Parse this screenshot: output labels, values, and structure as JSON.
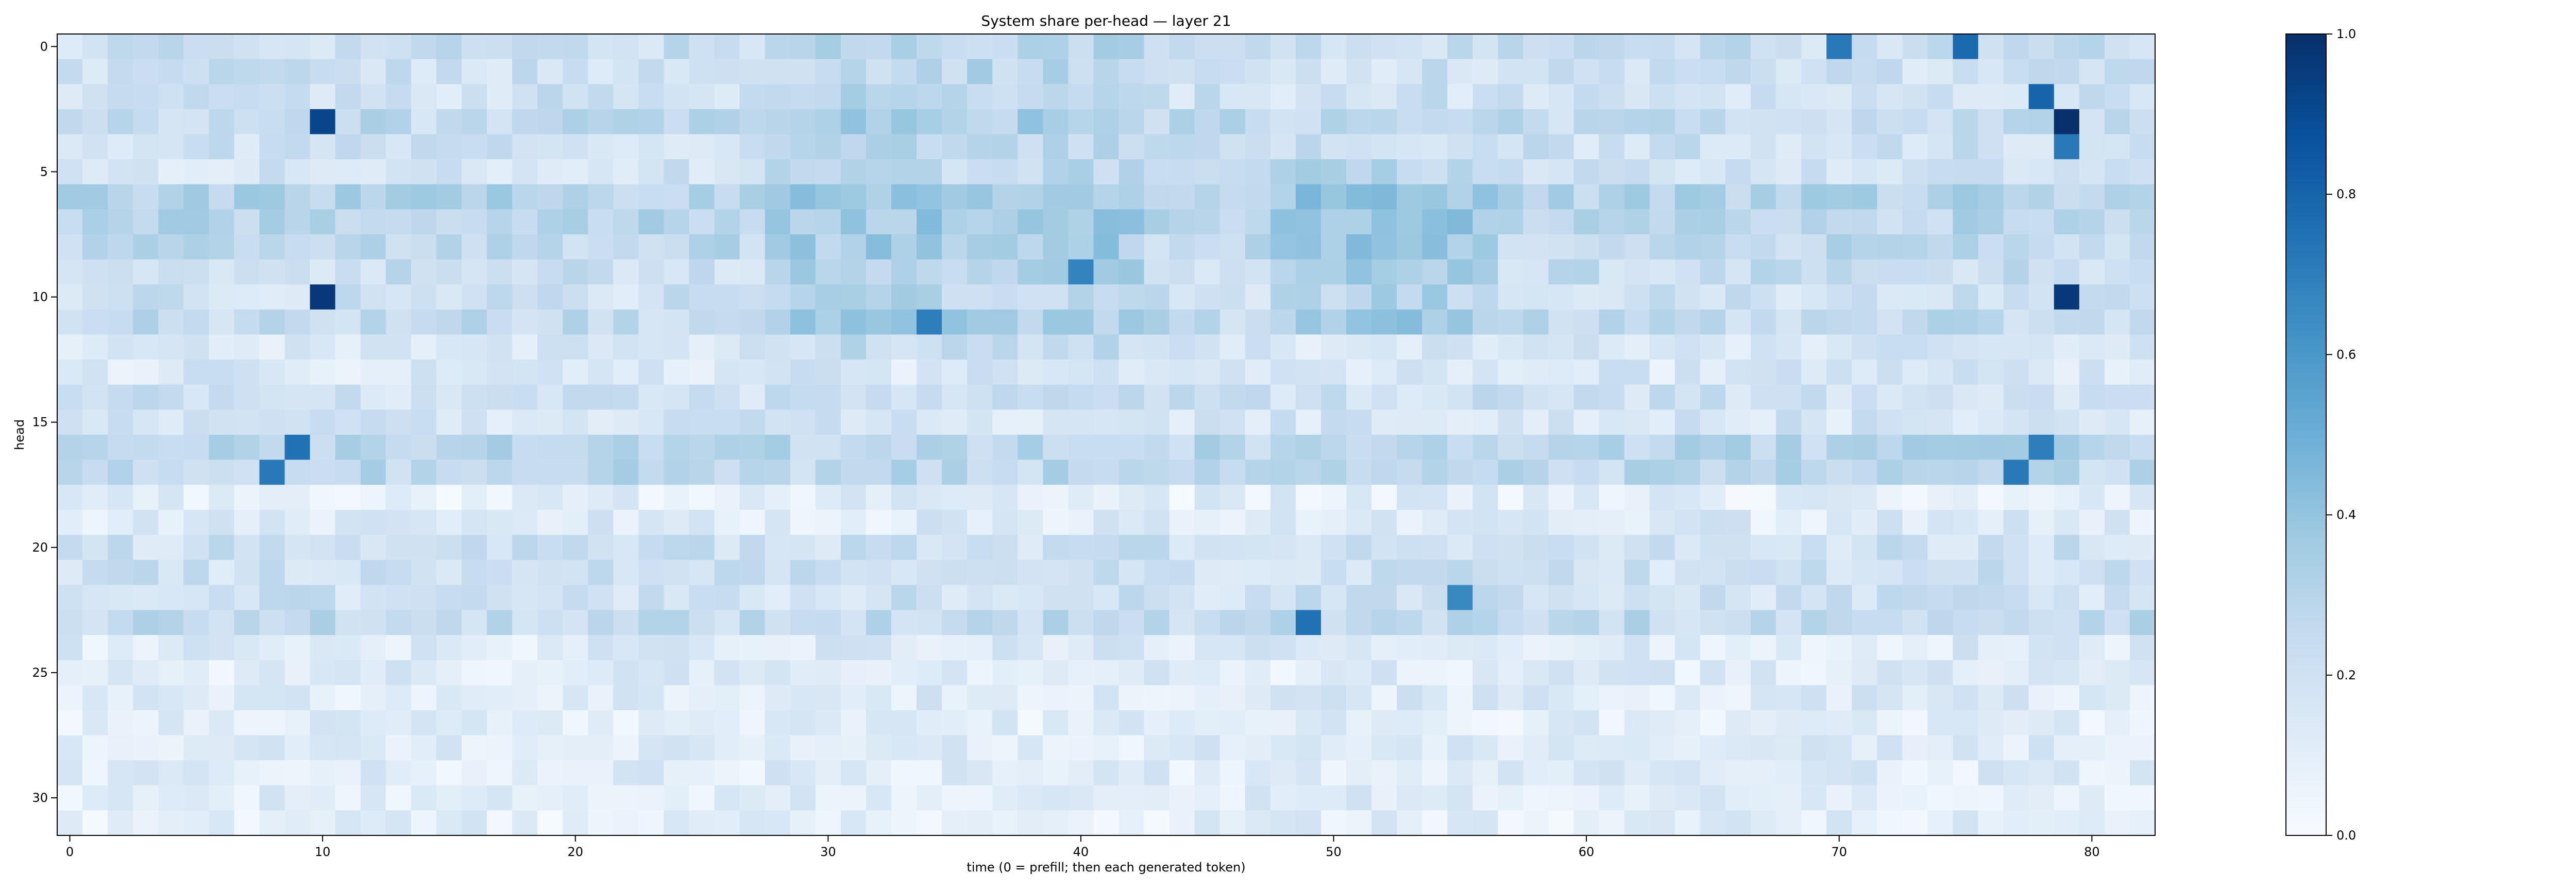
{
  "chart_data": {
    "type": "heatmap",
    "title": "System share per-head — layer 21",
    "xlabel": "time (0 = prefill; then each generated token)",
    "ylabel": "head",
    "n_cols": 83,
    "n_rows": 32,
    "x_range": [
      0,
      82
    ],
    "y_range": [
      0,
      31
    ],
    "x_ticks": [
      "0",
      "10",
      "20",
      "30",
      "40",
      "50",
      "60",
      "70",
      "80"
    ],
    "y_ticks": [
      "0",
      "5",
      "10",
      "15",
      "20",
      "25",
      "30"
    ],
    "colormap": "Blues",
    "colorbar": {
      "min": 0.0,
      "max": 1.0,
      "ticks": [
        "0.0",
        "0.2",
        "0.4",
        "0.6",
        "0.8",
        "1.0"
      ]
    },
    "grid": false,
    "legend": "none",
    "colors": {
      "low": "#f7fbff",
      "high": "#08306b"
    },
    "highlights": [
      {
        "x": 10,
        "y": 3,
        "value": 0.92
      },
      {
        "x": 10,
        "y": 10,
        "value": 0.97
      },
      {
        "x": 79,
        "y": 3,
        "value": 1.0
      },
      {
        "x": 79,
        "y": 10,
        "value": 0.97
      },
      {
        "x": 70,
        "y": 0,
        "value": 0.72
      },
      {
        "x": 75,
        "y": 0,
        "value": 0.78
      },
      {
        "x": 78,
        "y": 2,
        "value": 0.8
      },
      {
        "x": 79,
        "y": 4,
        "value": 0.72
      },
      {
        "x": 9,
        "y": 16,
        "value": 0.75
      },
      {
        "x": 8,
        "y": 17,
        "value": 0.72
      },
      {
        "x": 49,
        "y": 23,
        "value": 0.75
      },
      {
        "x": 40,
        "y": 9,
        "value": 0.68
      },
      {
        "x": 34,
        "y": 11,
        "value": 0.7
      },
      {
        "x": 55,
        "y": 22,
        "value": 0.66
      },
      {
        "x": 77,
        "y": 17,
        "value": 0.72
      },
      {
        "x": 78,
        "y": 16,
        "value": 0.7
      }
    ]
  }
}
